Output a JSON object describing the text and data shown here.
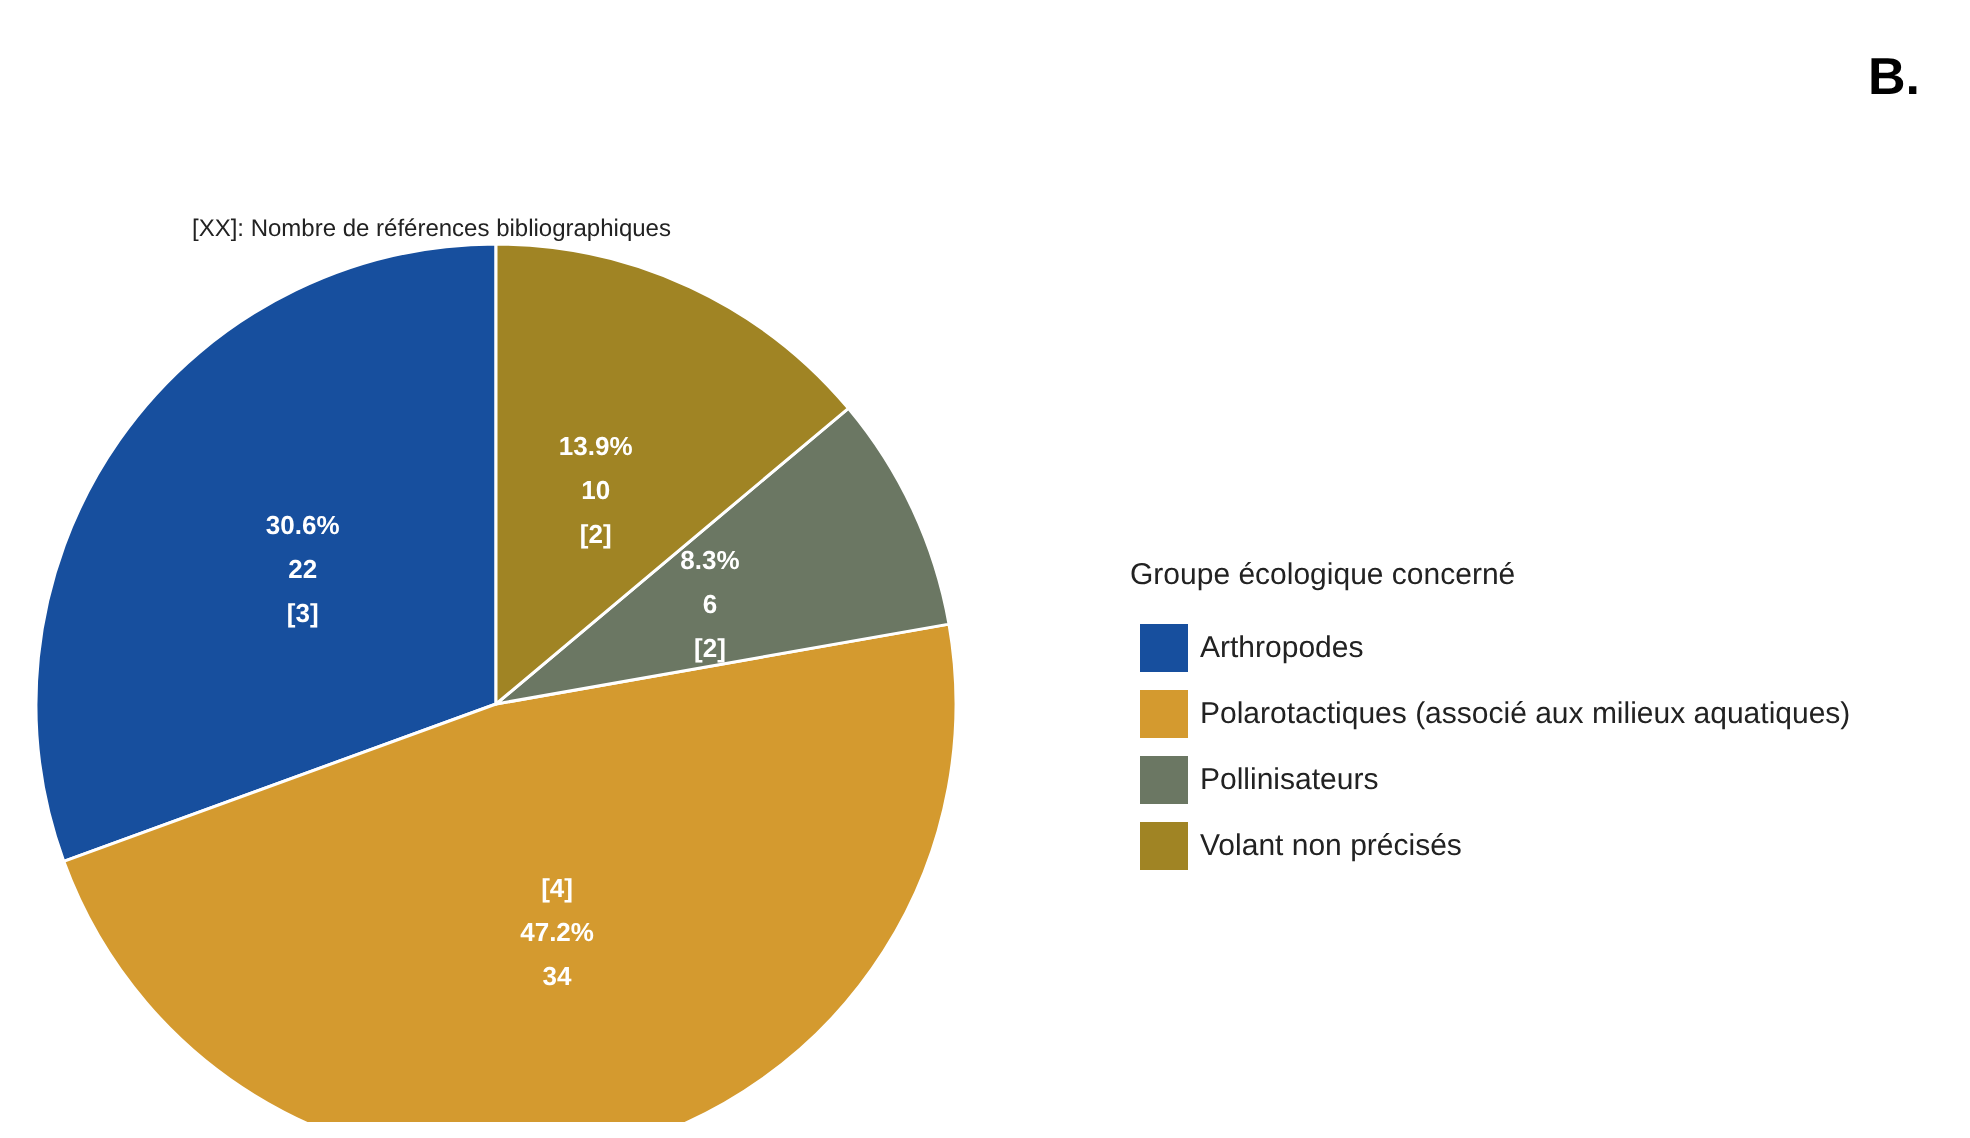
{
  "chart_data": {
    "type": "pie",
    "title": "B.",
    "legend_title": "Groupe écologique concerné",
    "annotations": [
      "[XX]: Nombre de références bibliographiques"
    ],
    "categories": [
      "Arthropodes",
      "Polarotactiques (associé aux milieux aquatiques)",
      "Pollinisateurs",
      "Volant non précisés"
    ],
    "values": [
      22,
      34,
      6,
      10
    ],
    "value_labels": [
      "30.6%\n22\n[3]",
      "[4]\n47.2%\n34",
      "8.3%\n6\n[2]",
      "13.9%\n10\n[2]"
    ],
    "colors": [
      "#174f9e",
      "#d49a2f",
      "#6b7763",
      "#a08424"
    ],
    "legend": "right"
  }
}
